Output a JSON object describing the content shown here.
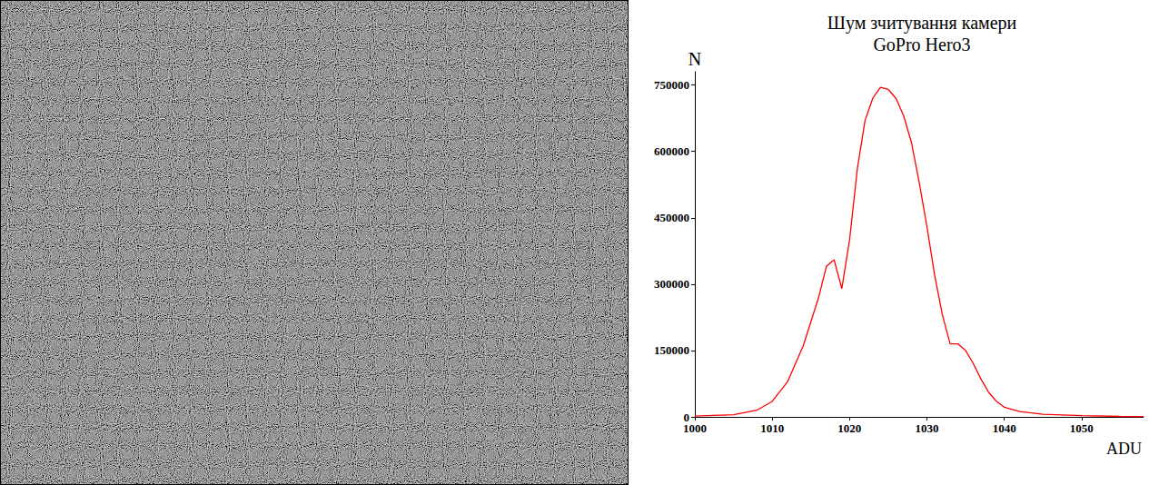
{
  "chart_data": {
    "type": "line",
    "title": "Шум зчитування камери\nGoPro Hero3",
    "x_label": "ADU",
    "y_label": "N",
    "color": "#ff0000",
    "grid": false,
    "x": [
      1000,
      1005,
      1008,
      1010,
      1012,
      1014,
      1016,
      1017,
      1018,
      1019,
      1020,
      1021,
      1022,
      1023,
      1024,
      1025,
      1026,
      1027,
      1028,
      1029,
      1030,
      1031,
      1032,
      1033,
      1034,
      1035,
      1036,
      1037,
      1038,
      1039,
      1040,
      1042,
      1045,
      1050,
      1055,
      1058
    ],
    "values": [
      2000,
      5000,
      15000,
      35000,
      80000,
      160000,
      270000,
      340000,
      355000,
      290000,
      400000,
      560000,
      670000,
      720000,
      745000,
      740000,
      720000,
      680000,
      620000,
      530000,
      430000,
      320000,
      230000,
      165000,
      165000,
      150000,
      120000,
      85000,
      55000,
      35000,
      22000,
      12000,
      6000,
      3000,
      1000,
      500
    ],
    "xlim": [
      1000,
      1058
    ],
    "xticks": [
      1000,
      1010,
      1020,
      1030,
      1040,
      1050
    ],
    "ylim": [
      0,
      780000
    ],
    "yticks": [
      0,
      150000,
      300000,
      450000,
      600000,
      750000
    ]
  }
}
